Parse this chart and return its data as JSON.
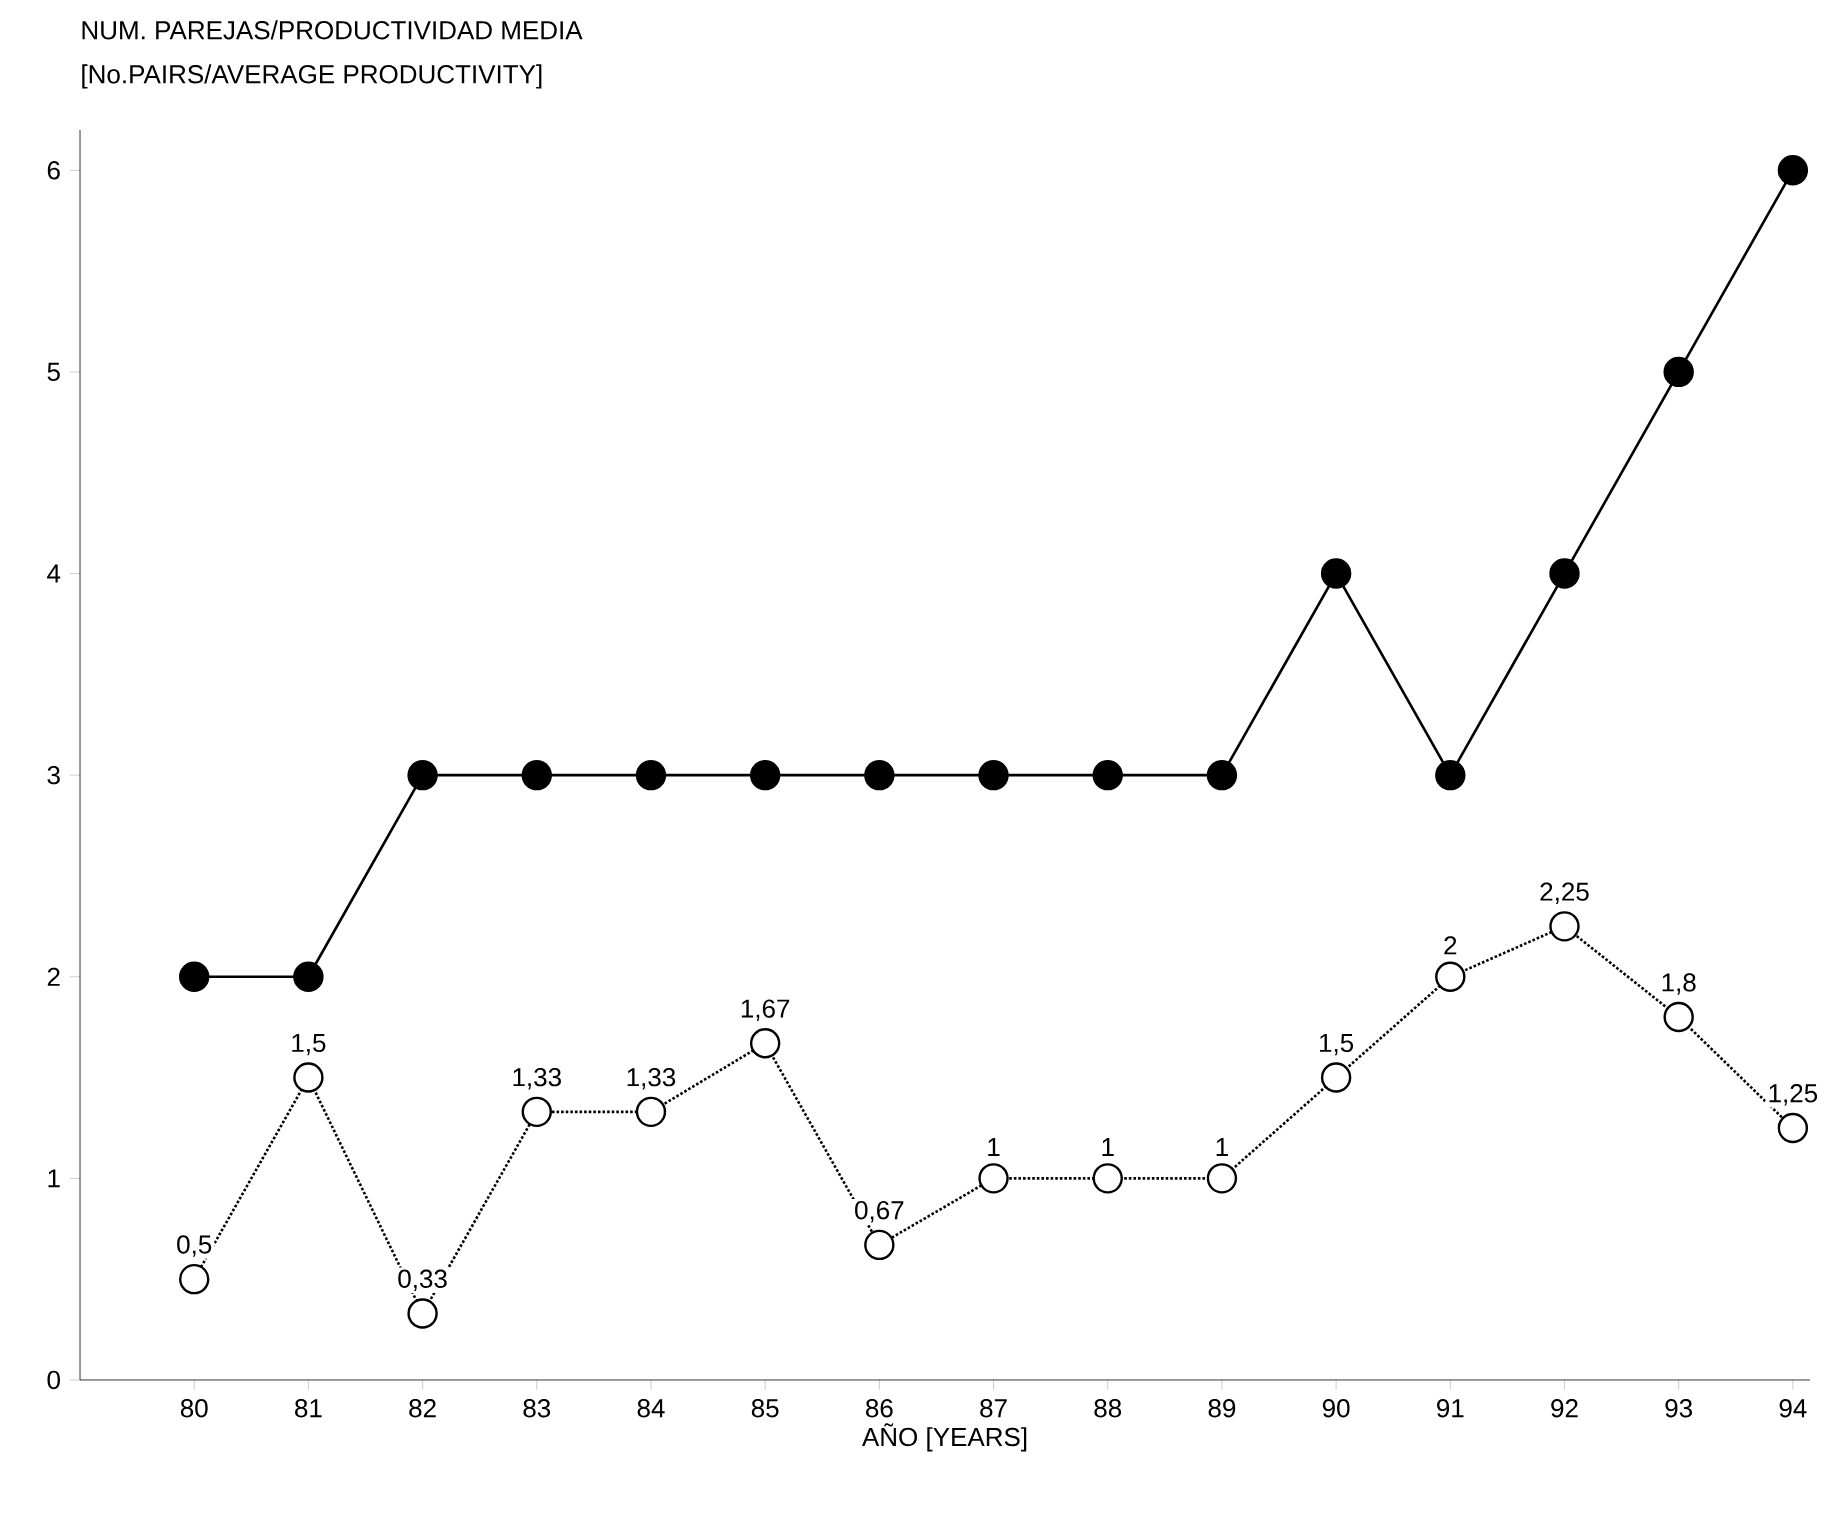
{
  "chart_data": {
    "type": "line",
    "title": "NUM. PAREJAS/PRODUCTIVIDAD MEDIA",
    "subtitle": "[No.PAIRS/AVERAGE PRODUCTIVITY]",
    "xlabel": "AÑO [YEARS]",
    "categories": [
      "80",
      "81",
      "82",
      "83",
      "84",
      "85",
      "86",
      "87",
      "88",
      "89",
      "90",
      "91",
      "92",
      "93",
      "94"
    ],
    "ylim": [
      0,
      6.2
    ],
    "yticks": [
      0,
      1,
      2,
      3,
      4,
      5,
      6
    ],
    "grid": false,
    "marker": "circle",
    "series": [
      {
        "color": "#000000",
        "line_style": "solid",
        "values": [
          2,
          2,
          3,
          3,
          3,
          3,
          3,
          3,
          3,
          3,
          4,
          3,
          4,
          5,
          6
        ]
      },
      {
        "color": "#000000",
        "line_style": "dotted",
        "values": [
          0.5,
          1.5,
          0.33,
          1.33,
          1.33,
          1.67,
          0.67,
          1,
          1,
          1,
          1.5,
          2,
          2.25,
          1.8,
          1.25
        ],
        "value_labels": [
          "0,5",
          "1,5",
          "0,33",
          "1,33",
          "1,33",
          "1,67",
          "0,67",
          "1",
          "1",
          "1",
          "1,5",
          "2",
          "2,25",
          "1,8",
          "1,25"
        ]
      }
    ]
  }
}
